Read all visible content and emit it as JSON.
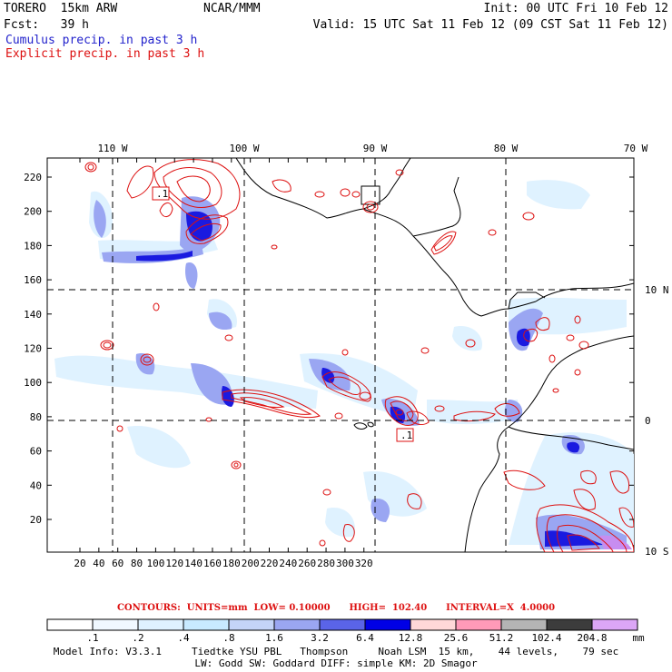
{
  "header": {
    "model": "TORERO  15km ARW",
    "org": "NCAR/MMM",
    "init": "Init: 00 UTC Fri 10 Feb 12",
    "fcst": "Fcst:   39 h",
    "valid": "Valid: 15 UTC Sat 11 Feb 12 (09 CST Sat 11 Feb 12)",
    "legend_cumulus": "Cumulus precip. in past 3 h",
    "legend_explicit": "Explicit precip. in past 3 h"
  },
  "axes": {
    "lon_labels": [
      "110 W",
      "100 W",
      "90 W",
      "80 W",
      "70 W"
    ],
    "lat_labels": [
      "10 N",
      "0",
      "10 S"
    ],
    "x_ticks": [
      "20",
      "40",
      "60",
      "80",
      "100",
      "120",
      "140",
      "160",
      "180",
      "200",
      "220",
      "240",
      "260",
      "280",
      "300",
      "320"
    ],
    "y_ticks": [
      "20",
      "40",
      "60",
      "80",
      "100",
      "120",
      "140",
      "160",
      "180",
      "200",
      "220"
    ]
  },
  "map_labels": {
    "box_label_1": ".1",
    "box_label_2": ".1"
  },
  "contour_info": {
    "text": "CONTOURS:  UNITS=mm  LOW= 0.10000      HIGH=  102.40      INTERVAL=X  4.0000"
  },
  "colorbar": {
    "labels": [
      ".1",
      ".2",
      ".4",
      ".8",
      "1.6",
      "3.2",
      "6.4",
      "12.8",
      "25.6",
      "51.2",
      "102.4",
      "204.8"
    ],
    "unit": "mm",
    "colors": [
      "#ffffff",
      "#f0f8ff",
      "#dff2ff",
      "#c8eaff",
      "#c4d4f8",
      "#9aa6f2",
      "#5a64e8",
      "#0000e6",
      "#ffd8d8",
      "#ff9ab8",
      "#b4b4b4",
      "#3c3c3c",
      "#dca6f6"
    ]
  },
  "footer": {
    "line1": "Model Info: V3.3.1     Tiedtke YSU PBL   Thompson     Noah LSM  15 km,    44 levels,    79 sec",
    "line2": "LW: Godd SW: Goddard DIFF: simple KM: 2D Smagor"
  },
  "colors": {
    "cumulus_text": "#2222cc",
    "explicit_text": "#dd1111",
    "contour": "#dd1111"
  }
}
